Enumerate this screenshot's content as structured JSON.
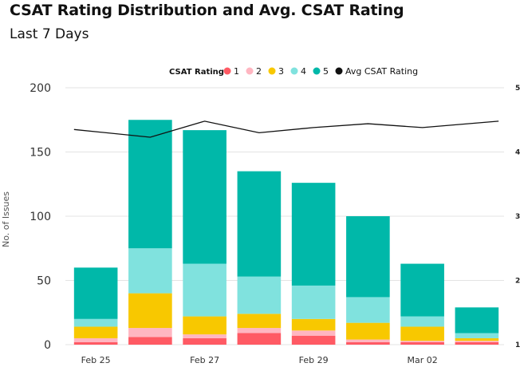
{
  "chart_data": {
    "type": "bar",
    "title": "CSAT Rating Distribution and Avg. CSAT Rating",
    "subtitle": "Last 7 Days",
    "ylabel": "No. of Issues",
    "ylim": [
      0,
      200
    ],
    "y_ticks": [
      "0",
      "50",
      "100",
      "150",
      "200"
    ],
    "y2lim": [
      1,
      5
    ],
    "y2_ticks": [
      "1",
      "2",
      "3",
      "4",
      "5"
    ],
    "x_tick_labels": [
      "Feb 25",
      "Feb 27",
      "Feb 29",
      "Mar 02"
    ],
    "categories": [
      "Feb 25",
      "Feb 26",
      "Feb 27",
      "Feb 28",
      "Feb 29",
      "Mar 01",
      "Mar 02",
      "Mar 03"
    ],
    "legend_title": "CSAT Rating",
    "series": [
      {
        "name": "1",
        "color": "#ff5a64",
        "values": [
          2,
          6,
          5,
          9,
          7,
          2,
          2,
          2
        ]
      },
      {
        "name": "2",
        "color": "#ffb6c1",
        "values": [
          3,
          7,
          3,
          4,
          4,
          2,
          1,
          1
        ]
      },
      {
        "name": "3",
        "color": "#f8c800",
        "values": [
          9,
          27,
          14,
          11,
          9,
          13,
          11,
          2
        ]
      },
      {
        "name": "4",
        "color": "#80e2de",
        "values": [
          6,
          35,
          41,
          29,
          26,
          20,
          8,
          4
        ]
      },
      {
        "name": "5",
        "color": "#00b8a9",
        "values": [
          40,
          100,
          104,
          82,
          80,
          63,
          41,
          20
        ]
      }
    ],
    "line_series": {
      "name": "Avg CSAT Rating",
      "color": "#111111",
      "x": [
        "Feb 25",
        "Feb 26",
        "Feb 27",
        "Feb 28",
        "Feb 29",
        "Mar 01",
        "Mar 02",
        "Mar 03"
      ],
      "values": [
        4.35,
        4.23,
        4.48,
        4.3,
        4.38,
        4.44,
        4.38,
        4.48
      ]
    },
    "legend_position": "top-center",
    "grid": "horizontal"
  }
}
